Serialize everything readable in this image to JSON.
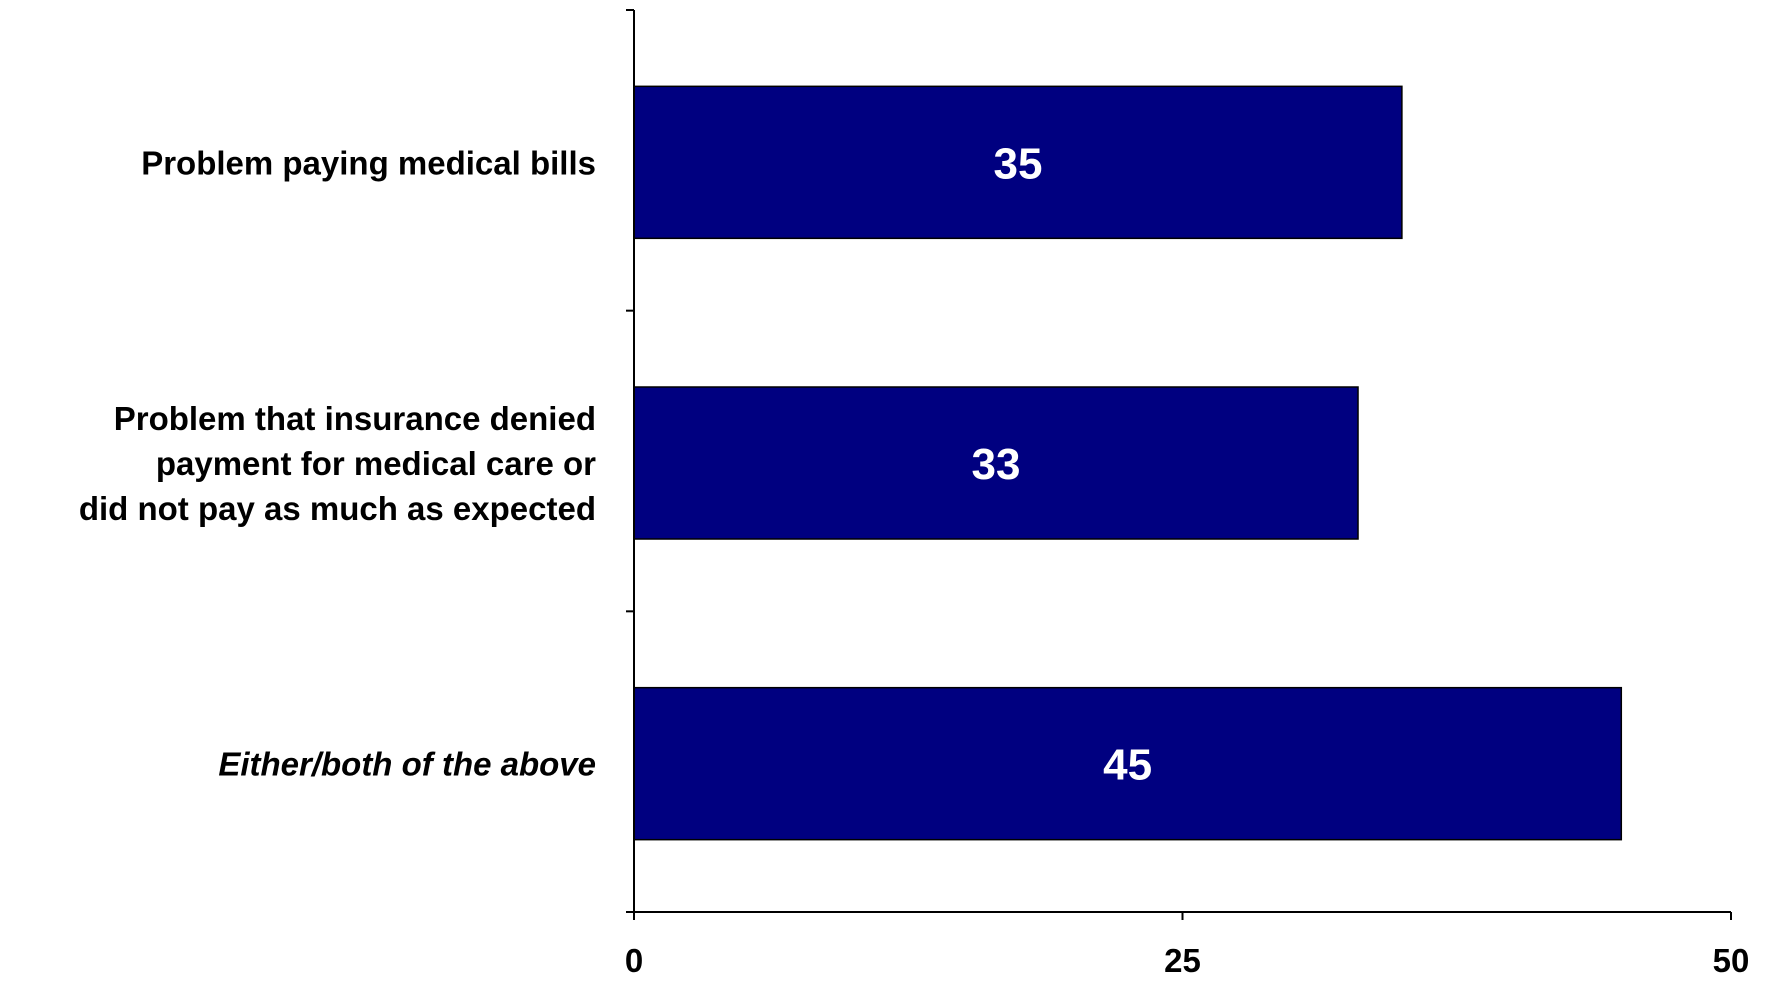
{
  "chart_data": {
    "type": "bar",
    "orientation": "horizontal",
    "categories": [
      [
        "Problem paying medical bills"
      ],
      [
        "Problem that insurance denied",
        "payment for medical care or",
        "did not pay as much as expected"
      ],
      [
        "Either/both of the above"
      ]
    ],
    "category_italic": [
      false,
      false,
      true
    ],
    "values": [
      35,
      33,
      45
    ],
    "data_labels": [
      "35",
      "33",
      "45"
    ],
    "xlim": [
      0,
      50
    ],
    "xticks": [
      0,
      25,
      50
    ],
    "xtick_labels": [
      "0",
      "25",
      "50"
    ],
    "title": "",
    "xlabel": "",
    "ylabel": "",
    "grid": false,
    "legend": "none",
    "bar_color": "#000080",
    "bar_edge_color": "#000000",
    "label_color": "#ffffff"
  }
}
